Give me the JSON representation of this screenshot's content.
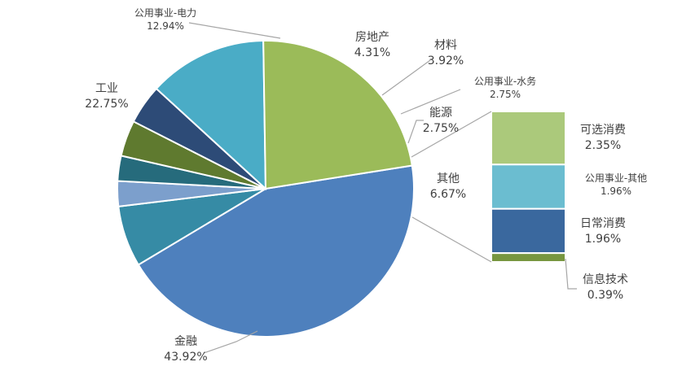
{
  "chart_data": {
    "type": "pie",
    "title": "",
    "slices": [
      {
        "name": "金融",
        "value": 43.92,
        "display": "43.92%",
        "color": "#4e80bd"
      },
      {
        "name": "其他",
        "value": 6.67,
        "display": "6.67%",
        "color": "#368ba5"
      },
      {
        "name": "能源",
        "value": 2.75,
        "display": "2.75%",
        "color": "#7c9fcc"
      },
      {
        "name": "公用事业-水务",
        "value": 2.75,
        "display": "2.75%",
        "color": "#266b7c"
      },
      {
        "name": "材料",
        "value": 3.92,
        "display": "3.92%",
        "color": "#5f7a2f"
      },
      {
        "name": "房地产",
        "value": 4.31,
        "display": "4.31%",
        "color": "#2d4b77"
      },
      {
        "name": "公用事业-电力",
        "value": 12.94,
        "display": "12.94%",
        "color": "#4aacc6"
      },
      {
        "name": "工业",
        "value": 22.75,
        "display": "22.75%",
        "color": "#9bbb59"
      }
    ],
    "breakdown": {
      "of": "其他",
      "type": "stacked-bar",
      "items": [
        {
          "name": "可选消费",
          "value": 2.35,
          "display": "2.35%",
          "color": "#abc97b"
        },
        {
          "name": "公用事业-其他",
          "value": 1.96,
          "display": "1.96%",
          "color": "#6bbdd0"
        },
        {
          "name": "日常消费",
          "value": 1.96,
          "display": "1.96%",
          "color": "#3a689e"
        },
        {
          "name": "信息技术",
          "value": 0.39,
          "display": "0.39%",
          "color": "#77963f"
        }
      ]
    }
  }
}
